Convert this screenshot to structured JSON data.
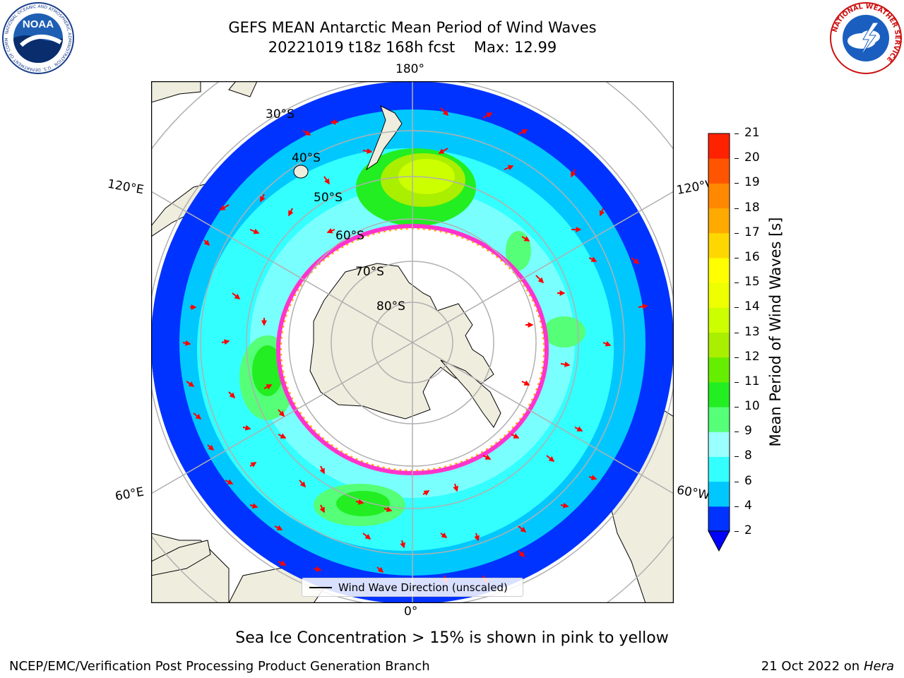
{
  "title": {
    "line1": "GEFS MEAN Antarctic Mean Period of Wind Waves",
    "line2": "20221019 t18z 168h fcst    Max: 12.99"
  },
  "logos": {
    "left": {
      "text": "NOAA",
      "ring_text": "NATIONAL OCEANIC AND ATMOSPHERIC ADMINISTRATION · U.S. DEPARTMENT OF COMMERCE"
    },
    "right": {
      "ring_text": "NATIONAL WEATHER SERVICE"
    }
  },
  "map": {
    "projection": "south-polar stereographic",
    "longitude_labels": {
      "top": "180°",
      "bottom": "0°",
      "upper_left": "120°E",
      "lower_left": "60°E",
      "upper_right": "120°W",
      "lower_right": "60°W"
    },
    "latitude_labels": [
      "30°S",
      "40°S",
      "50°S",
      "60°S",
      "70°S",
      "80°S"
    ],
    "legend_label": "Wind Wave Direction (unscaled)",
    "arrow_color": "#ff0000",
    "land_color": "#efedde",
    "ice_edge_colors": [
      "#ff33cc",
      "#ffa500",
      "#ffff66"
    ]
  },
  "colorbar": {
    "label": "Mean Period of Wind Waves [s]",
    "ticks": [
      "21",
      "20",
      "19",
      "18",
      "17",
      "16",
      "15",
      "14",
      "13",
      "12",
      "11",
      "10",
      "9",
      "8",
      "6",
      "4",
      "2"
    ],
    "levels": [
      2,
      4,
      6,
      8,
      9,
      10,
      11,
      12,
      13,
      14,
      15,
      16,
      17,
      18,
      19,
      20,
      21
    ],
    "colors": [
      "#0033ff",
      "#00c8ff",
      "#33ffff",
      "#99ffff",
      "#55ff77",
      "#22ee22",
      "#66ee00",
      "#aaee00",
      "#ccff00",
      "#eeff00",
      "#ffff00",
      "#ffd700",
      "#ffaa00",
      "#ff8800",
      "#ff5500",
      "#ff2200"
    ],
    "under_color": "#0000ff"
  },
  "caption": "Sea Ice Concentration > 15% is shown in pink to yellow",
  "footer": {
    "left": "NCEP/EMC/Verification Post Processing Product Generation Branch",
    "right_prefix": "21 Oct 2022 on ",
    "right_italic": "Hera"
  }
}
